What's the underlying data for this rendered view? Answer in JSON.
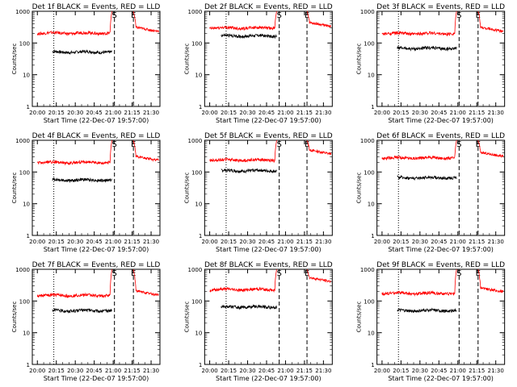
{
  "chart_data": [
    {
      "type": "line",
      "title": "Det 1f BLACK = Events, RED = LLD",
      "xlabel": "Start Time (22-Dec-07 19:57:00)",
      "ylabel": "Counts/sec",
      "xticks": [
        "20:00",
        "20:15",
        "20:30",
        "20:45",
        "21:00",
        "21:15",
        "21:30"
      ],
      "yticks": [
        "1",
        "10",
        "100",
        "1000"
      ],
      "ylim": [
        1,
        1000
      ],
      "scale": "log",
      "markers": [
        {
          "label": "S",
          "x": "21:01"
        },
        {
          "label": "E",
          "x": "21:16"
        }
      ],
      "dotted_x": [
        "20:13"
      ],
      "series": [
        {
          "color": "#000000",
          "start": "20:12",
          "end": "20:59",
          "level": 52
        },
        {
          "color": "#ff0000",
          "start": "20:00",
          "end": "20:59",
          "level": 205,
          "recovery_start": "21:16",
          "recovery_level": 240
        }
      ]
    },
    {
      "type": "line",
      "title": "Det 2f BLACK = Events, RED = LLD",
      "xlabel": "Start Time (22-Dec-07 19:57:00)",
      "ylabel": "Counts/sec",
      "xticks": [
        "20:00",
        "20:15",
        "20:30",
        "20:45",
        "21:00",
        "21:15",
        "21:30"
      ],
      "yticks": [
        "1",
        "10",
        "100",
        "1000"
      ],
      "ylim": [
        1,
        1000
      ],
      "scale": "log",
      "markers": [
        {
          "label": "S",
          "x": "20:55"
        },
        {
          "label": "E",
          "x": "21:17"
        }
      ],
      "dotted_x": [
        "20:13"
      ],
      "series": [
        {
          "color": "#000000",
          "start": "20:09",
          "end": "20:53",
          "level": 168
        },
        {
          "color": "#ff0000",
          "start": "20:00",
          "end": "20:53",
          "level": 300,
          "recovery_start": "21:17",
          "recovery_level": 340
        }
      ]
    },
    {
      "type": "line",
      "title": "Det 3f BLACK = Events, RED = LLD",
      "xlabel": "Start Time (22-Dec-07 19:57:00)",
      "ylabel": "Counts/sec",
      "xticks": [
        "20:00",
        "20:15",
        "20:30",
        "20:45",
        "21:00",
        "21:15",
        "21:30"
      ],
      "yticks": [
        "1",
        "10",
        "100",
        "1000"
      ],
      "ylim": [
        1,
        1000
      ],
      "scale": "log",
      "markers": [
        {
          "label": "S",
          "x": "21:01"
        },
        {
          "label": "E",
          "x": "21:16"
        }
      ],
      "dotted_x": [
        "20:13"
      ],
      "series": [
        {
          "color": "#000000",
          "start": "20:12",
          "end": "20:59",
          "level": 68
        },
        {
          "color": "#ff0000",
          "start": "20:00",
          "end": "20:59",
          "level": 200,
          "recovery_start": "21:16",
          "recovery_level": 240
        }
      ]
    },
    {
      "type": "line",
      "title": "Det 4f BLACK = Events, RED = LLD",
      "xlabel": "Start Time (22-Dec-07 19:57:00)",
      "ylabel": "Counts/sec",
      "xticks": [
        "20:00",
        "20:15",
        "20:30",
        "20:45",
        "21:00",
        "21:15",
        "21:30"
      ],
      "yticks": [
        "1",
        "10",
        "100",
        "1000"
      ],
      "ylim": [
        1,
        1000
      ],
      "scale": "log",
      "markers": [
        {
          "label": "S",
          "x": "21:01"
        },
        {
          "label": "E",
          "x": "21:16"
        }
      ],
      "dotted_x": [
        "20:13"
      ],
      "series": [
        {
          "color": "#000000",
          "start": "20:12",
          "end": "20:59",
          "level": 56
        },
        {
          "color": "#ff0000",
          "start": "20:00",
          "end": "20:59",
          "level": 200,
          "recovery_start": "21:16",
          "recovery_level": 240
        }
      ]
    },
    {
      "type": "line",
      "title": "Det 5f BLACK = Events, RED = LLD",
      "xlabel": "Start Time (22-Dec-07 19:57:00)",
      "ylabel": "Counts/sec",
      "xticks": [
        "20:00",
        "20:15",
        "20:30",
        "20:45",
        "21:00",
        "21:15",
        "21:30"
      ],
      "yticks": [
        "1",
        "10",
        "100",
        "1000"
      ],
      "ylim": [
        1,
        1000
      ],
      "scale": "log",
      "markers": [
        {
          "label": "S",
          "x": "20:55"
        },
        {
          "label": "E",
          "x": "21:17"
        }
      ],
      "dotted_x": [
        "20:13"
      ],
      "series": [
        {
          "color": "#000000",
          "start": "20:09",
          "end": "20:53",
          "level": 110
        },
        {
          "color": "#ff0000",
          "start": "20:00",
          "end": "20:53",
          "level": 240,
          "recovery_start": "21:17",
          "recovery_level": 380
        }
      ]
    },
    {
      "type": "line",
      "title": "Det 6f BLACK = Events, RED = LLD",
      "xlabel": "Start Time (22-Dec-07 19:57:00)",
      "ylabel": "Counts/sec",
      "xticks": [
        "20:00",
        "20:15",
        "20:30",
        "20:45",
        "21:00",
        "21:15",
        "21:30"
      ],
      "yticks": [
        "1",
        "10",
        "100",
        "1000"
      ],
      "ylim": [
        1,
        1000
      ],
      "scale": "log",
      "markers": [
        {
          "label": "S",
          "x": "21:01"
        },
        {
          "label": "E",
          "x": "21:16"
        }
      ],
      "dotted_x": [
        "20:13"
      ],
      "series": [
        {
          "color": "#000000",
          "start": "20:12",
          "end": "20:59",
          "level": 66
        },
        {
          "color": "#ff0000",
          "start": "20:00",
          "end": "20:59",
          "level": 280,
          "recovery_start": "21:16",
          "recovery_level": 320
        }
      ]
    },
    {
      "type": "line",
      "title": "Det 7f BLACK = Events, RED = LLD",
      "xlabel": "Start Time (22-Dec-07 19:57:00)",
      "ylabel": "Counts/sec",
      "xticks": [
        "20:00",
        "20:15",
        "20:30",
        "20:45",
        "21:00",
        "21:15",
        "21:30"
      ],
      "yticks": [
        "1",
        "10",
        "100",
        "1000"
      ],
      "ylim": [
        1,
        1000
      ],
      "scale": "log",
      "markers": [
        {
          "label": "S",
          "x": "21:01"
        },
        {
          "label": "E",
          "x": "21:16"
        }
      ],
      "dotted_x": [
        "20:13"
      ],
      "series": [
        {
          "color": "#000000",
          "start": "20:12",
          "end": "20:59",
          "level": 50
        },
        {
          "color": "#ff0000",
          "start": "20:00",
          "end": "20:59",
          "level": 150,
          "recovery_start": "21:16",
          "recovery_level": 160
        }
      ]
    },
    {
      "type": "line",
      "title": "Det 8f BLACK = Events, RED = LLD",
      "xlabel": "Start Time (22-Dec-07 19:57:00)",
      "ylabel": "Counts/sec",
      "xticks": [
        "20:00",
        "20:15",
        "20:30",
        "20:45",
        "21:00",
        "21:15",
        "21:30"
      ],
      "yticks": [
        "1",
        "10",
        "100",
        "1000"
      ],
      "ylim": [
        1,
        1000
      ],
      "scale": "log",
      "markers": [
        {
          "label": "S",
          "x": "20:55"
        },
        {
          "label": "E",
          "x": "21:17"
        }
      ],
      "dotted_x": [
        "20:13"
      ],
      "series": [
        {
          "color": "#000000",
          "start": "20:09",
          "end": "20:53",
          "level": 65
        },
        {
          "color": "#ff0000",
          "start": "20:00",
          "end": "20:53",
          "level": 230,
          "recovery_start": "21:17",
          "recovery_level": 420
        }
      ]
    },
    {
      "type": "line",
      "title": "Det 9f BLACK = Events, RED = LLD",
      "xlabel": "Start Time (22-Dec-07 19:57:00)",
      "ylabel": "Counts/sec",
      "xticks": [
        "20:00",
        "20:15",
        "20:30",
        "20:45",
        "21:00",
        "21:15",
        "21:30"
      ],
      "yticks": [
        "1",
        "10",
        "100",
        "1000"
      ],
      "ylim": [
        1,
        1000
      ],
      "scale": "log",
      "markers": [
        {
          "label": "S",
          "x": "21:01"
        },
        {
          "label": "E",
          "x": "21:16"
        }
      ],
      "dotted_x": [
        "20:13"
      ],
      "series": [
        {
          "color": "#000000",
          "start": "20:12",
          "end": "20:59",
          "level": 50
        },
        {
          "color": "#ff0000",
          "start": "20:00",
          "end": "20:59",
          "level": 175,
          "recovery_start": "21:16",
          "recovery_level": 200
        }
      ]
    }
  ]
}
